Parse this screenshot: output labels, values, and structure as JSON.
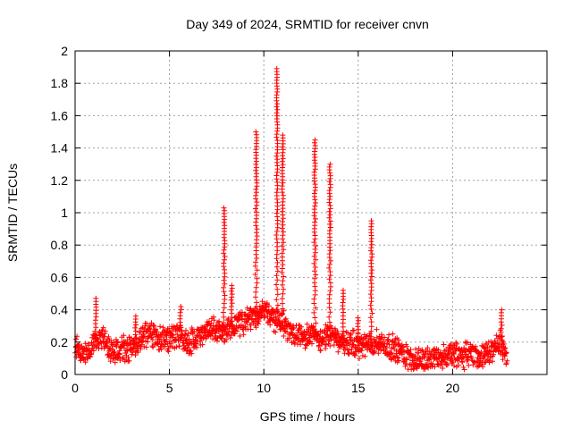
{
  "chart_data": {
    "type": "scatter",
    "title": "Day 349 of 2024, SRMTID for receiver cnvn",
    "xlabel": "GPS time / hours",
    "ylabel": "SRMTID / TECUs",
    "xlim": [
      0,
      25
    ],
    "ylim": [
      0,
      2
    ],
    "xticks": [
      0,
      5,
      10,
      15,
      20
    ],
    "yticks": [
      0,
      0.2,
      0.4,
      0.6,
      0.8,
      1,
      1.2,
      1.4,
      1.6,
      1.8,
      2
    ],
    "xtick_labels": [
      "0",
      "5",
      "10",
      "15",
      "20"
    ],
    "ytick_labels": [
      "0",
      "0.2",
      "0.4",
      "0.6",
      "0.8",
      "1",
      "1.2",
      "1.4",
      "1.6",
      "1.8",
      "2"
    ],
    "grid": true,
    "marker": "+",
    "color": "#ff0000",
    "x_extent": [
      0,
      22.9
    ],
    "baseline_profile": [
      [
        0.0,
        0.17
      ],
      [
        0.5,
        0.12
      ],
      [
        1.0,
        0.2
      ],
      [
        1.5,
        0.22
      ],
      [
        2.0,
        0.14
      ],
      [
        2.5,
        0.15
      ],
      [
        3.0,
        0.17
      ],
      [
        3.5,
        0.22
      ],
      [
        4.0,
        0.24
      ],
      [
        4.5,
        0.22
      ],
      [
        5.0,
        0.22
      ],
      [
        5.5,
        0.25
      ],
      [
        6.0,
        0.2
      ],
      [
        6.5,
        0.24
      ],
      [
        7.0,
        0.28
      ],
      [
        7.5,
        0.26
      ],
      [
        8.0,
        0.28
      ],
      [
        8.5,
        0.3
      ],
      [
        9.0,
        0.32
      ],
      [
        9.5,
        0.35
      ],
      [
        10.0,
        0.4
      ],
      [
        10.5,
        0.35
      ],
      [
        11.0,
        0.32
      ],
      [
        11.5,
        0.26
      ],
      [
        12.0,
        0.25
      ],
      [
        12.5,
        0.24
      ],
      [
        13.0,
        0.22
      ],
      [
        13.5,
        0.24
      ],
      [
        14.0,
        0.2
      ],
      [
        14.5,
        0.2
      ],
      [
        15.0,
        0.18
      ],
      [
        15.5,
        0.18
      ],
      [
        16.0,
        0.2
      ],
      [
        16.5,
        0.18
      ],
      [
        17.0,
        0.16
      ],
      [
        17.5,
        0.12
      ],
      [
        18.0,
        0.08
      ],
      [
        18.5,
        0.09
      ],
      [
        19.0,
        0.11
      ],
      [
        19.5,
        0.11
      ],
      [
        20.0,
        0.12
      ],
      [
        20.5,
        0.11
      ],
      [
        21.0,
        0.14
      ],
      [
        21.5,
        0.1
      ],
      [
        22.0,
        0.13
      ],
      [
        22.5,
        0.2
      ],
      [
        22.9,
        0.1
      ]
    ],
    "spikes": [
      {
        "center": 1.1,
        "width": 0.1,
        "peak": 0.47
      },
      {
        "center": 3.2,
        "width": 0.1,
        "peak": 0.36
      },
      {
        "center": 5.6,
        "width": 0.12,
        "peak": 0.42
      },
      {
        "center": 7.9,
        "width": 0.1,
        "peak": 1.03
      },
      {
        "center": 8.3,
        "width": 0.1,
        "peak": 0.55
      },
      {
        "center": 9.6,
        "width": 0.12,
        "peak": 1.5
      },
      {
        "center": 10.7,
        "width": 0.1,
        "peak": 1.89
      },
      {
        "center": 11.0,
        "width": 0.1,
        "peak": 1.48
      },
      {
        "center": 12.7,
        "width": 0.12,
        "peak": 1.45
      },
      {
        "center": 13.5,
        "width": 0.12,
        "peak": 1.3
      },
      {
        "center": 14.2,
        "width": 0.08,
        "peak": 0.52
      },
      {
        "center": 15.7,
        "width": 0.1,
        "peak": 0.95
      },
      {
        "center": 15.0,
        "width": 0.1,
        "peak": 0.35
      },
      {
        "center": 22.6,
        "width": 0.1,
        "peak": 0.4
      }
    ]
  }
}
